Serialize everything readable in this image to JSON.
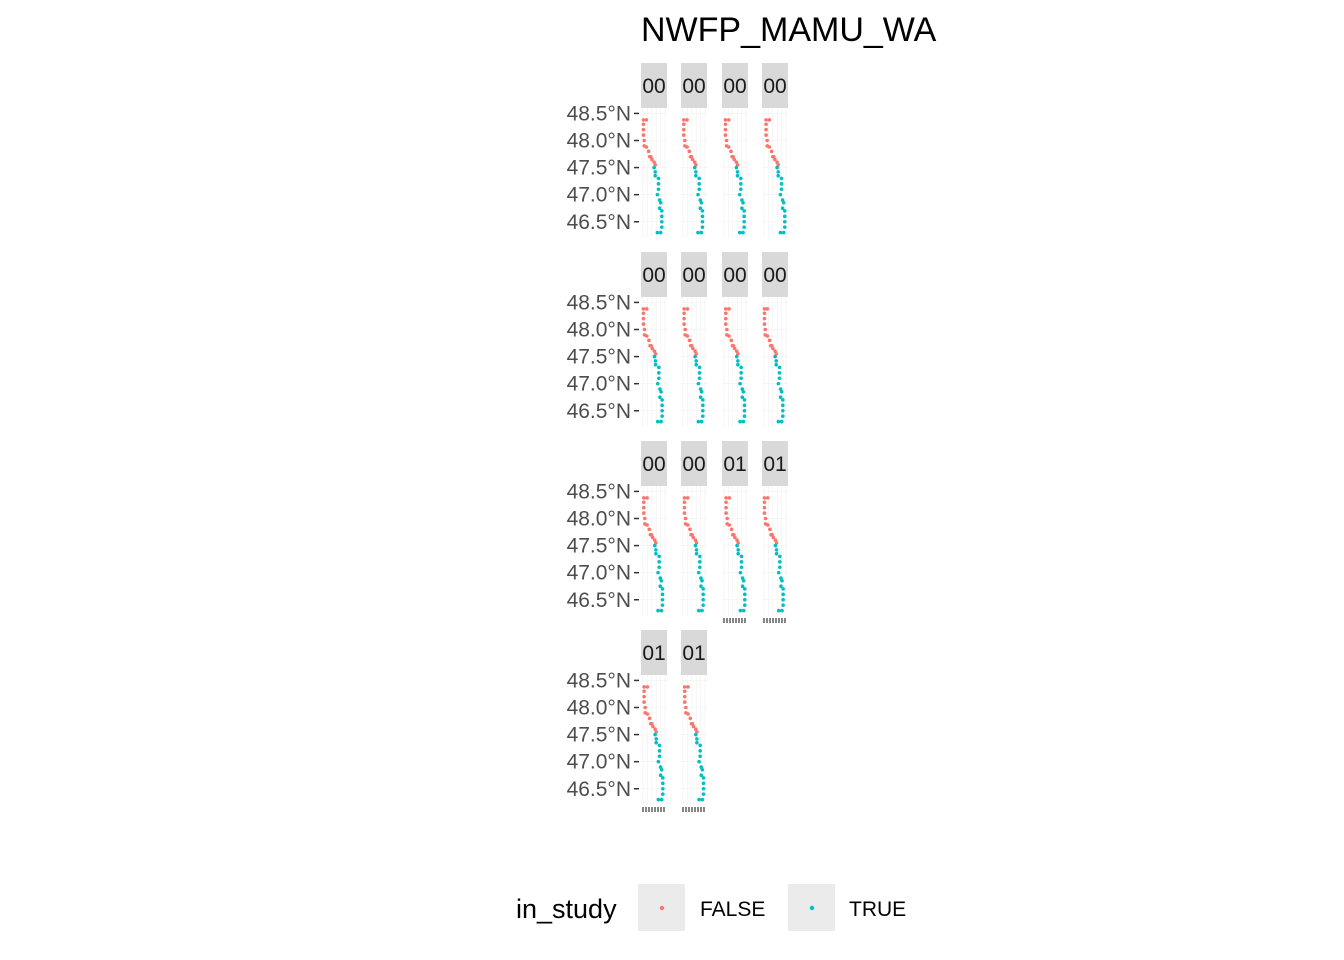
{
  "chart_data": {
    "type": "scatter",
    "title": "NWFP_MAMU_WA",
    "facet_labels": [
      "00",
      "00",
      "00",
      "00",
      "00",
      "00",
      "00",
      "00",
      "00",
      "00",
      "01",
      "01",
      "01",
      "01"
    ],
    "y_axis": {
      "ticks": [
        48.5,
        48.0,
        47.5,
        47.0,
        46.5
      ],
      "tick_labels": [
        "48.5°N",
        "48.0°N",
        "47.5°N",
        "47.0°N",
        "46.5°N"
      ],
      "ylim": [
        46.2,
        48.6
      ]
    },
    "grid": true,
    "legend": {
      "title": "in_study",
      "position": "bottom",
      "entries": [
        {
          "label": "FALSE",
          "color": "#F8766D"
        },
        {
          "label": "TRUE",
          "color": "#00BFC4"
        }
      ]
    },
    "series_template": {
      "name_false": "FALSE",
      "name_true": "TRUE",
      "points_false": [
        [
          0.05,
          48.38
        ],
        [
          0.2,
          48.38
        ],
        [
          0.05,
          48.3
        ],
        [
          0.05,
          48.2
        ],
        [
          0.05,
          48.1
        ],
        [
          0.1,
          48.0
        ],
        [
          0.1,
          47.9
        ],
        [
          0.2,
          47.88
        ],
        [
          0.3,
          47.8
        ],
        [
          0.35,
          47.7
        ],
        [
          0.45,
          47.65
        ],
        [
          0.55,
          47.6
        ],
        [
          0.6,
          47.55
        ],
        [
          0.4,
          47.7
        ]
      ],
      "points_true": [
        [
          0.55,
          47.5
        ],
        [
          0.6,
          47.42
        ],
        [
          0.6,
          47.35
        ],
        [
          0.75,
          47.3
        ],
        [
          0.75,
          47.2
        ],
        [
          0.75,
          47.1
        ],
        [
          0.7,
          47.0
        ],
        [
          0.8,
          46.9
        ],
        [
          0.85,
          46.85
        ],
        [
          0.8,
          46.75
        ],
        [
          0.9,
          46.7
        ],
        [
          0.9,
          46.6
        ],
        [
          0.9,
          46.5
        ],
        [
          0.9,
          46.4
        ],
        [
          0.85,
          46.3
        ],
        [
          0.7,
          46.3
        ]
      ]
    }
  }
}
